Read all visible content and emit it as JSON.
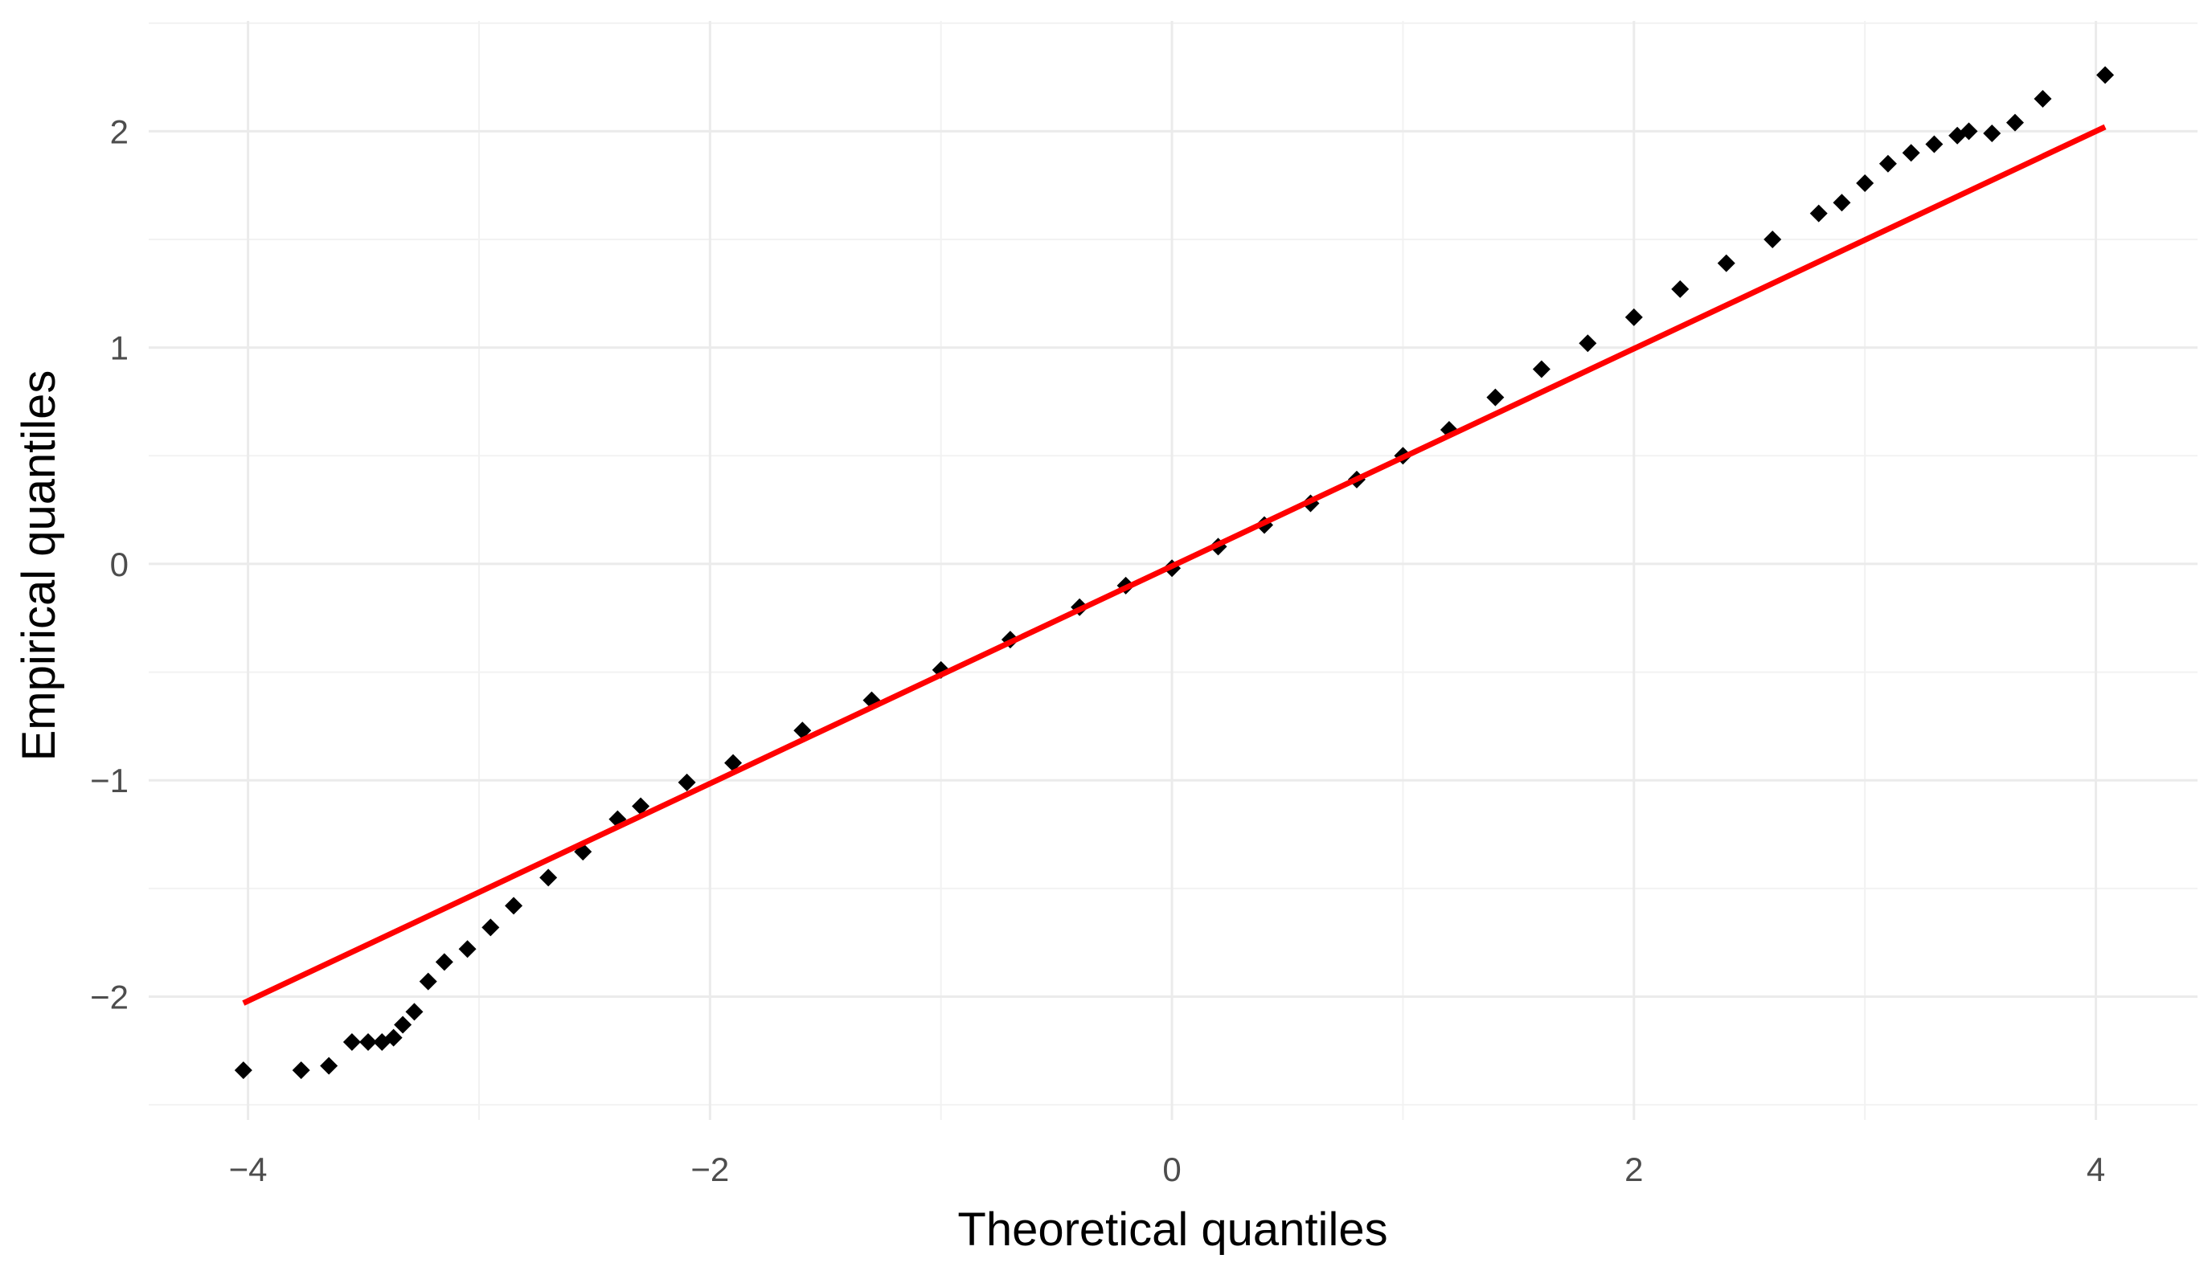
{
  "chart_data": {
    "type": "scatter",
    "xlabel": "Theoretical quantiles",
    "ylabel": "Empirical quantiles",
    "xlim": [
      -4.43,
      4.44
    ],
    "ylim": [
      -2.57,
      2.51
    ],
    "xticks": [
      {
        "value": -4,
        "label": "−4"
      },
      {
        "value": -2,
        "label": "−2"
      },
      0,
      2,
      4
    ],
    "yticks": [
      {
        "value": -2,
        "label": "−2"
      },
      {
        "value": -1,
        "label": "−1"
      },
      0,
      1,
      2
    ],
    "minor_xticks": [
      -3,
      -1,
      1,
      3
    ],
    "minor_yticks": [
      -2.5,
      -1.5,
      -0.5,
      0.5,
      1.5,
      2.5
    ],
    "grid": true,
    "series": [
      {
        "color": "#000000",
        "mode": "points",
        "x": [
          -4.02,
          -3.77,
          -3.65,
          -3.55,
          -3.48,
          -3.42,
          -3.37,
          -3.33,
          -3.28,
          -3.22,
          -3.15,
          -3.05,
          -2.95,
          -2.85,
          -2.7,
          -2.55,
          -2.4,
          -2.3,
          -2.1,
          -1.9,
          -1.6,
          -1.3,
          -1.0,
          -0.7,
          -0.4,
          -0.2,
          0,
          0.2,
          0.4,
          0.6,
          0.8,
          1.0,
          1.2,
          1.4,
          1.6,
          1.8,
          2.0,
          2.2,
          2.4,
          2.6,
          2.8,
          2.9,
          3.0,
          3.1,
          3.2,
          3.3,
          3.4,
          3.45,
          3.55,
          3.65,
          3.77,
          4.04
        ],
        "values": [
          -2.34,
          -2.34,
          -2.32,
          -2.21,
          -2.21,
          -2.21,
          -2.19,
          -2.13,
          -2.07,
          -1.93,
          -1.84,
          -1.78,
          -1.68,
          -1.58,
          -1.45,
          -1.33,
          -1.18,
          -1.12,
          -1.01,
          -0.92,
          -0.77,
          -0.63,
          -0.49,
          -0.35,
          -0.2,
          -0.1,
          -0.02,
          0.08,
          0.18,
          0.28,
          0.39,
          0.5,
          0.62,
          0.77,
          0.9,
          1.02,
          1.14,
          1.27,
          1.39,
          1.5,
          1.62,
          1.67,
          1.76,
          1.85,
          1.9,
          1.94,
          1.98,
          2.0,
          1.99,
          2.04,
          2.15,
          2.26
        ]
      },
      {
        "color": "#ff0000",
        "mode": "line",
        "x": [
          -4.02,
          4.04
        ],
        "values": [
          -2.03,
          2.02
        ]
      }
    ]
  }
}
